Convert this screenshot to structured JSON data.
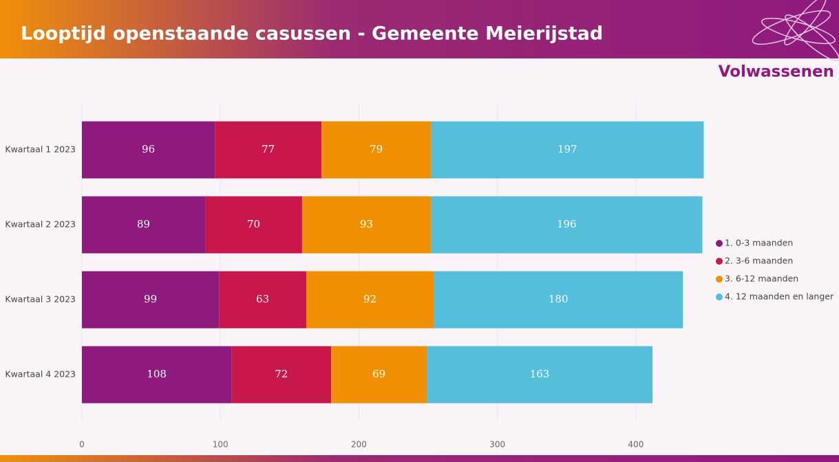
{
  "chart_data": {
    "type": "bar",
    "orientation": "horizontal",
    "stacked": true,
    "title": "Looptijd openstaande casussen - Gemeente Meierijstad",
    "subtitle": "Volwassenen",
    "categories": [
      "Kwartaal 1 2023",
      "Kwartaal 2 2023",
      "Kwartaal 3 2023",
      "Kwartaal 4 2023"
    ],
    "series": [
      {
        "name": "1. 0-3 maanden",
        "color": "#8e1a7e",
        "values": [
          96,
          89,
          99,
          108
        ]
      },
      {
        "name": "2. 3-6 maanden",
        "color": "#c8174a",
        "values": [
          77,
          70,
          63,
          72
        ]
      },
      {
        "name": "3. 6-12 maanden",
        "color": "#f09000",
        "values": [
          79,
          93,
          92,
          69
        ]
      },
      {
        "name": "4. 12 maanden en langer",
        "color": "#55bedb",
        "values": [
          197,
          196,
          180,
          163
        ]
      }
    ],
    "xlim": [
      0,
      450
    ],
    "xticks": [
      0,
      100,
      200,
      300,
      400
    ],
    "grid": true,
    "legend": "right"
  }
}
